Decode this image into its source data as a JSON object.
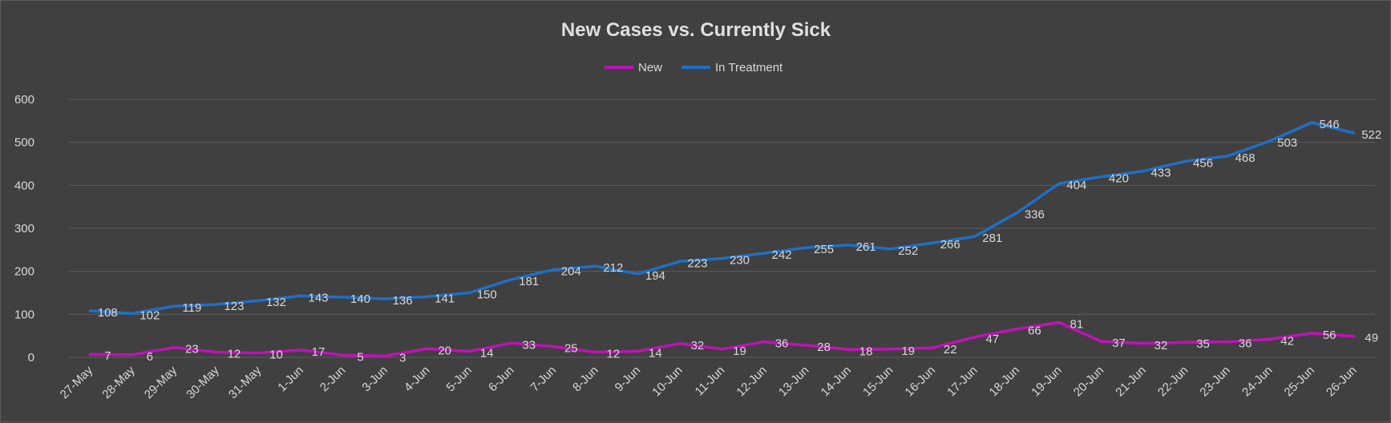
{
  "chart_data": {
    "type": "line",
    "title": "New Cases vs. Currently Sick",
    "xlabel": "",
    "ylabel": "",
    "ylim": [
      0,
      600
    ],
    "yticks": [
      0,
      100,
      200,
      300,
      400,
      500,
      600
    ],
    "grid": true,
    "legend_position": "top",
    "categories": [
      "27-May",
      "28-May",
      "29-May",
      "30-May",
      "31-May",
      "1-Jun",
      "2-Jun",
      "3-Jun",
      "4-Jun",
      "5-Jun",
      "6-Jun",
      "7-Jun",
      "8-Jun",
      "9-Jun",
      "10-Jun",
      "11-Jun",
      "12-Jun",
      "13-Jun",
      "14-Jun",
      "15-Jun",
      "16-Jun",
      "17-Jun",
      "18-Jun",
      "19-Jun",
      "20-Jun",
      "21-Jun",
      "22-Jun",
      "23-Jun",
      "24-Jun",
      "25-Jun",
      "26-Jun"
    ],
    "series": [
      {
        "name": "New",
        "color": "#c012b8",
        "values": [
          7,
          6,
          23,
          12,
          10,
          17,
          5,
          3,
          20,
          14,
          33,
          25,
          12,
          14,
          32,
          19,
          36,
          28,
          18,
          19,
          22,
          47,
          66,
          81,
          37,
          32,
          35,
          36,
          42,
          56,
          49
        ]
      },
      {
        "name": "In Treatment",
        "color": "#1f6fc4",
        "values": [
          108,
          102,
          119,
          123,
          132,
          143,
          140,
          136,
          141,
          150,
          181,
          204,
          212,
          194,
          223,
          230,
          242,
          255,
          261,
          252,
          266,
          281,
          336,
          404,
          420,
          433,
          456,
          468,
          503,
          546,
          522
        ]
      }
    ]
  }
}
